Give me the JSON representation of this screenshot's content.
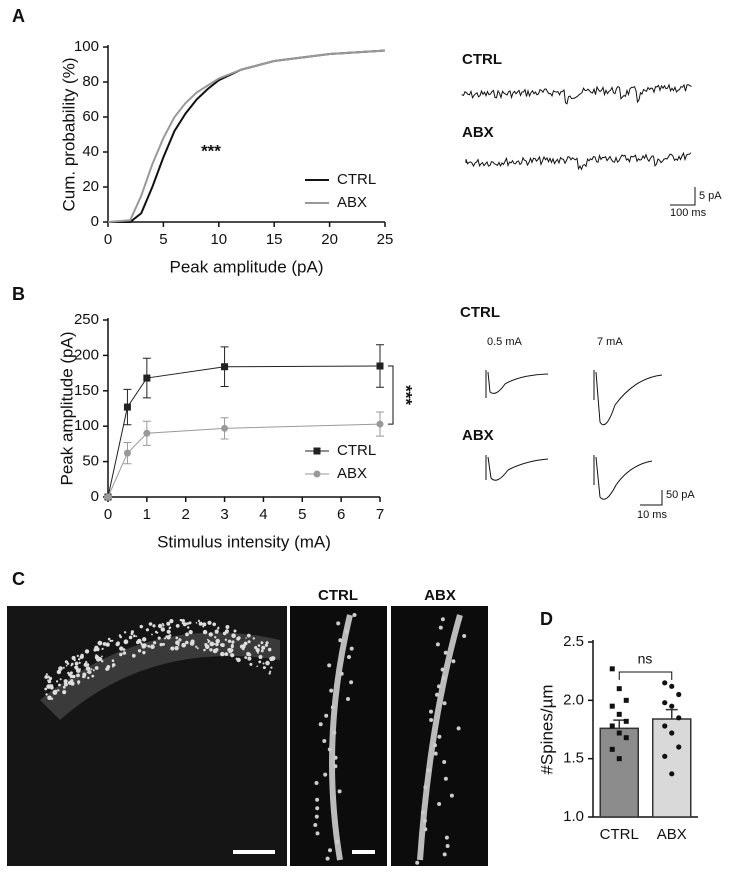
{
  "figure": {
    "panel_labels": [
      "A",
      "B",
      "C",
      "D"
    ],
    "panel_a_traces": {
      "labels": [
        "CTRL",
        "ABX"
      ],
      "scale_y": "5 pA",
      "scale_x": "100 ms"
    },
    "panel_b_traces": {
      "labels": [
        "CTRL",
        "ABX"
      ],
      "stimuli": [
        "0.5 mA",
        "7 mA"
      ],
      "scale_y": "50 pA",
      "scale_x": "10 ms"
    },
    "panel_c": {
      "labels": [
        "CTRL",
        "ABX"
      ]
    }
  },
  "chart_data": [
    {
      "type": "line",
      "xlabel": "Peak amplitude (pA)",
      "ylabel": "Cum. probability (%)",
      "annotation": "***",
      "x": [
        0,
        2,
        3,
        4,
        5,
        6,
        7,
        8,
        9,
        10,
        12,
        15,
        20,
        25
      ],
      "series": [
        {
          "name": "CTRL",
          "color": "#111111",
          "values": [
            0,
            0,
            5,
            20,
            37,
            52,
            62,
            70,
            76,
            81,
            87,
            92,
            96,
            98
          ]
        },
        {
          "name": "ABX",
          "color": "#999999",
          "values": [
            0,
            1,
            15,
            33,
            48,
            60,
            68,
            74,
            78,
            82,
            87,
            92,
            96,
            98
          ]
        }
      ],
      "xlim": [
        0,
        25
      ],
      "xticks": [
        0,
        5,
        10,
        15,
        20,
        25
      ],
      "ylim": [
        0,
        100
      ],
      "yticks": [
        0,
        20,
        40,
        60,
        80,
        100
      ],
      "legend": "lower right"
    },
    {
      "type": "line",
      "xlabel": "Stimulus intensity (mA)",
      "ylabel": "Peak  amplitude (pA)",
      "annotation": "***",
      "x": [
        0,
        0.5,
        1,
        3,
        7
      ],
      "series": [
        {
          "name": "CTRL",
          "color": "#222222",
          "marker": "square",
          "values": [
            0,
            127,
            168,
            184,
            185
          ],
          "errors": [
            0,
            25,
            28,
            28,
            30
          ]
        },
        {
          "name": "ABX",
          "color": "#999999",
          "marker": "circle",
          "values": [
            0,
            62,
            90,
            97,
            103
          ],
          "errors": [
            0,
            15,
            17,
            15,
            17
          ]
        }
      ],
      "xlim": [
        0,
        7
      ],
      "xticks": [
        0,
        1,
        2,
        3,
        4,
        5,
        6,
        7
      ],
      "ylim": [
        0,
        250
      ],
      "yticks": [
        0,
        50,
        100,
        150,
        200,
        250
      ],
      "legend": "lower right"
    },
    {
      "type": "bar",
      "ylabel": "#Spines/µm",
      "annotation": "ns",
      "categories": [
        "CTRL",
        "ABX"
      ],
      "values": [
        1.76,
        1.84
      ],
      "errors": [
        0.07,
        0.08
      ],
      "colors": [
        "#8c8c8c",
        "#d9d9d9"
      ],
      "points": [
        [
          2.27,
          2.1,
          2.0,
          1.95,
          1.88,
          1.82,
          1.78,
          1.72,
          1.68,
          1.58,
          1.5
        ],
        [
          2.15,
          2.12,
          2.05,
          1.98,
          1.95,
          1.85,
          1.78,
          1.72,
          1.6,
          1.52,
          1.37
        ]
      ],
      "ylim": [
        1,
        2.5
      ],
      "yticks": [
        {
          "value": 1,
          "label": "1.0"
        },
        1.5,
        {
          "value": 2,
          "label": "2.0"
        },
        2.5
      ]
    }
  ]
}
